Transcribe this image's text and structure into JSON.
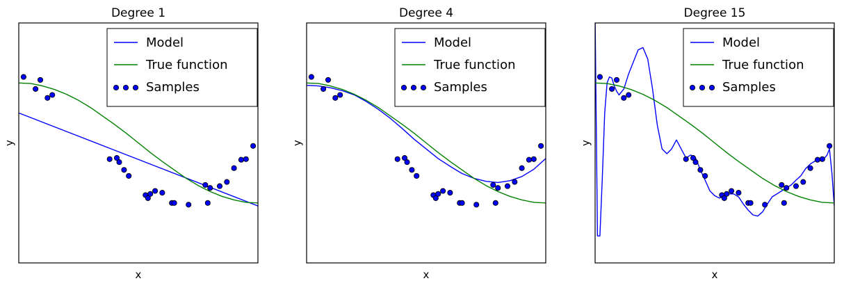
{
  "colors": {
    "model": "#0000ff",
    "true_function": "#008000",
    "sample_fill": "#0000ff",
    "sample_edge": "#000000",
    "axes": "#000000",
    "background": "#ffffff"
  },
  "chart_data": [
    {
      "type": "line",
      "title": "Degree 1",
      "xlabel": "x",
      "ylabel": "y",
      "grid": false,
      "legend_position": "top-right",
      "legend": [
        "Model",
        "True function",
        "Samples"
      ],
      "xlim": [
        0,
        1
      ],
      "ylim": [
        -2,
        2
      ],
      "series": [
        {
          "name": "Model",
          "x": [
            0,
            0.2,
            0.4,
            0.6,
            0.8,
            1.0
          ],
          "y": [
            0.5,
            0.19,
            -0.12,
            -0.43,
            -0.74,
            -1.05
          ]
        },
        {
          "name": "True function",
          "x": [
            0,
            0.05,
            0.1,
            0.15,
            0.2,
            0.25,
            0.3,
            0.35,
            0.4,
            0.45,
            0.5,
            0.55,
            0.6,
            0.65,
            0.7,
            0.75,
            0.8,
            0.85,
            0.9,
            0.95,
            1.0
          ],
          "y": [
            1,
            0.99,
            0.95,
            0.89,
            0.81,
            0.71,
            0.59,
            0.45,
            0.31,
            0.16,
            0,
            -0.16,
            -0.31,
            -0.45,
            -0.59,
            -0.71,
            -0.81,
            -0.89,
            -0.95,
            -0.99,
            -1
          ]
        },
        {
          "name": "Samples",
          "x": [
            0.02,
            0.07,
            0.09,
            0.12,
            0.14,
            0.38,
            0.41,
            0.42,
            0.44,
            0.46,
            0.53,
            0.54,
            0.55,
            0.57,
            0.6,
            0.64,
            0.65,
            0.71,
            0.78,
            0.79,
            0.8,
            0.84,
            0.87,
            0.9,
            0.93,
            0.95,
            0.98
          ],
          "y": [
            1.1,
            0.9,
            1.05,
            0.75,
            0.8,
            -0.27,
            -0.25,
            -0.32,
            -0.45,
            -0.55,
            -0.87,
            -0.92,
            -0.85,
            -0.8,
            -0.83,
            -1.0,
            -1.0,
            -1.03,
            -0.7,
            -1.0,
            -0.75,
            -0.72,
            -0.65,
            -0.42,
            -0.28,
            -0.27,
            -0.05
          ]
        }
      ]
    },
    {
      "type": "line",
      "title": "Degree 4",
      "xlabel": "x",
      "ylabel": "y",
      "grid": false,
      "legend_position": "top-right",
      "legend": [
        "Model",
        "True function",
        "Samples"
      ],
      "xlim": [
        0,
        1
      ],
      "ylim": [
        -2,
        2
      ],
      "series": [
        {
          "name": "Model",
          "x": [
            0,
            0.05,
            0.1,
            0.15,
            0.2,
            0.25,
            0.3,
            0.35,
            0.4,
            0.45,
            0.5,
            0.55,
            0.6,
            0.65,
            0.7,
            0.75,
            0.8,
            0.85,
            0.9,
            0.95,
            1.0
          ],
          "y": [
            0.96,
            0.95,
            0.92,
            0.87,
            0.8,
            0.69,
            0.56,
            0.41,
            0.24,
            0.06,
            -0.1,
            -0.26,
            -0.39,
            -0.51,
            -0.59,
            -0.64,
            -0.66,
            -0.63,
            -0.56,
            -0.44,
            -0.26
          ]
        },
        {
          "name": "True function",
          "x": [
            0,
            0.05,
            0.1,
            0.15,
            0.2,
            0.25,
            0.3,
            0.35,
            0.4,
            0.45,
            0.5,
            0.55,
            0.6,
            0.65,
            0.7,
            0.75,
            0.8,
            0.85,
            0.9,
            0.95,
            1.0
          ],
          "y": [
            1,
            0.99,
            0.95,
            0.89,
            0.81,
            0.71,
            0.59,
            0.45,
            0.31,
            0.16,
            0,
            -0.16,
            -0.31,
            -0.45,
            -0.59,
            -0.71,
            -0.81,
            -0.89,
            -0.95,
            -0.99,
            -1
          ]
        },
        {
          "name": "Samples",
          "x": [
            0.02,
            0.07,
            0.09,
            0.12,
            0.14,
            0.38,
            0.41,
            0.42,
            0.44,
            0.46,
            0.53,
            0.54,
            0.55,
            0.57,
            0.6,
            0.64,
            0.65,
            0.71,
            0.78,
            0.79,
            0.8,
            0.84,
            0.87,
            0.9,
            0.93,
            0.95,
            0.98
          ],
          "y": [
            1.1,
            0.9,
            1.05,
            0.75,
            0.8,
            -0.27,
            -0.25,
            -0.32,
            -0.45,
            -0.55,
            -0.87,
            -0.92,
            -0.85,
            -0.8,
            -0.83,
            -1.0,
            -1.0,
            -1.03,
            -0.7,
            -1.0,
            -0.75,
            -0.72,
            -0.65,
            -0.42,
            -0.28,
            -0.27,
            -0.05
          ]
        }
      ]
    },
    {
      "type": "line",
      "title": "Degree 15",
      "xlabel": "x",
      "ylabel": "y",
      "grid": false,
      "legend_position": "top-right",
      "legend": [
        "Model",
        "True function",
        "Samples"
      ],
      "xlim": [
        0,
        1
      ],
      "ylim": [
        -2,
        2
      ],
      "series": [
        {
          "name": "Model",
          "x": [
            0.0,
            0.01,
            0.02,
            0.03,
            0.04,
            0.05,
            0.06,
            0.07,
            0.08,
            0.09,
            0.1,
            0.12,
            0.14,
            0.16,
            0.18,
            0.2,
            0.22,
            0.24,
            0.26,
            0.28,
            0.3,
            0.32,
            0.34,
            0.36,
            0.38,
            0.4,
            0.42,
            0.44,
            0.46,
            0.48,
            0.5,
            0.52,
            0.54,
            0.56,
            0.58,
            0.6,
            0.62,
            0.64,
            0.66,
            0.68,
            0.7,
            0.72,
            0.74,
            0.76,
            0.78,
            0.8,
            0.82,
            0.84,
            0.86,
            0.88,
            0.9,
            0.92,
            0.94,
            0.96,
            0.97,
            0.98,
            0.99,
            1.0
          ],
          "y": [
            2.1,
            -1.55,
            -1.55,
            -0.6,
            0.5,
            1.0,
            1.1,
            1.08,
            0.95,
            0.86,
            0.8,
            0.9,
            1.15,
            1.35,
            1.55,
            1.59,
            1.4,
            0.9,
            0.3,
            -0.1,
            -0.18,
            -0.1,
            0.05,
            -0.1,
            -0.25,
            -0.2,
            -0.25,
            -0.45,
            -0.62,
            -0.8,
            -0.88,
            -0.92,
            -0.88,
            -0.85,
            -0.85,
            -0.9,
            -1.02,
            -1.12,
            -1.2,
            -1.22,
            -1.15,
            -1.02,
            -0.9,
            -0.85,
            -0.8,
            -0.75,
            -0.7,
            -0.62,
            -0.55,
            -0.43,
            -0.35,
            -0.3,
            -0.27,
            -0.25,
            -0.2,
            -0.1,
            -0.5,
            -1.05
          ]
        },
        {
          "name": "True function",
          "x": [
            0,
            0.05,
            0.1,
            0.15,
            0.2,
            0.25,
            0.3,
            0.35,
            0.4,
            0.45,
            0.5,
            0.55,
            0.6,
            0.65,
            0.7,
            0.75,
            0.8,
            0.85,
            0.9,
            0.95,
            1.0
          ],
          "y": [
            1,
            0.99,
            0.95,
            0.89,
            0.81,
            0.71,
            0.59,
            0.45,
            0.31,
            0.16,
            0,
            -0.16,
            -0.31,
            -0.45,
            -0.59,
            -0.71,
            -0.81,
            -0.89,
            -0.95,
            -0.99,
            -1
          ]
        },
        {
          "name": "Samples",
          "x": [
            0.02,
            0.07,
            0.09,
            0.12,
            0.14,
            0.38,
            0.41,
            0.42,
            0.44,
            0.46,
            0.53,
            0.54,
            0.55,
            0.57,
            0.6,
            0.64,
            0.65,
            0.71,
            0.78,
            0.79,
            0.8,
            0.84,
            0.87,
            0.9,
            0.93,
            0.95,
            0.98
          ],
          "y": [
            1.1,
            0.9,
            1.05,
            0.75,
            0.8,
            -0.27,
            -0.25,
            -0.32,
            -0.45,
            -0.55,
            -0.87,
            -0.92,
            -0.85,
            -0.8,
            -0.83,
            -1.0,
            -1.0,
            -1.03,
            -0.7,
            -1.0,
            -0.75,
            -0.72,
            -0.65,
            -0.42,
            -0.28,
            -0.27,
            -0.05
          ]
        }
      ]
    }
  ]
}
